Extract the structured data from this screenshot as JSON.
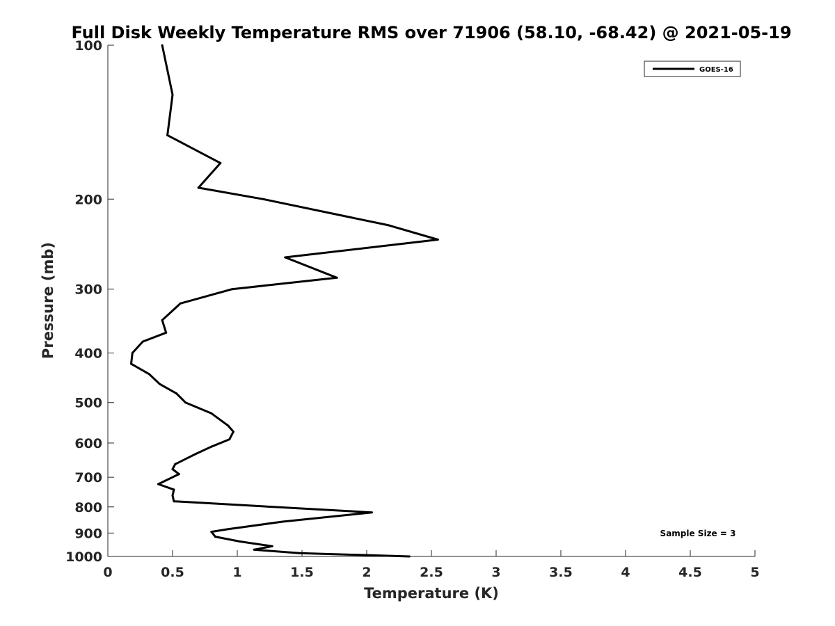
{
  "chart_data": {
    "type": "line",
    "title": "Full Disk Weekly Temperature RMS over 71906 (58.10, -68.42) @ 2021-05-19",
    "xlabel": "Temperature (K)",
    "ylabel": "Pressure (mb)",
    "xlim": [
      0,
      5
    ],
    "ylim": [
      100,
      1000
    ],
    "y_scale": "log",
    "y_reversed": true,
    "x_ticks": [
      "0",
      "0.5",
      "1",
      "1.5",
      "2",
      "2.5",
      "3",
      "3.5",
      "4",
      "4.5",
      "5"
    ],
    "y_ticks": [
      "100",
      "200",
      "300",
      "400",
      "500",
      "600",
      "700",
      "800",
      "900",
      "1000"
    ],
    "grid": false,
    "legend_position": "top-right",
    "series": [
      {
        "name": "GOES-16",
        "color": "#000000",
        "x": [
          0.42,
          0.5,
          0.46,
          0.87,
          0.7,
          1.2,
          2.17,
          2.55,
          1.37,
          1.77,
          0.96,
          0.56,
          0.42,
          0.45,
          0.27,
          0.19,
          0.18,
          0.32,
          0.4,
          0.53,
          0.6,
          0.8,
          0.93,
          0.97,
          0.94,
          0.8,
          0.68,
          0.52,
          0.5,
          0.55,
          0.39,
          0.51,
          0.5,
          0.51,
          2.04,
          1.35,
          0.92,
          0.8,
          0.83,
          1.02,
          1.27,
          1.13,
          1.48,
          2.33
        ],
        "y": [
          100,
          125,
          150,
          170,
          190,
          200,
          225,
          240,
          260,
          285,
          300,
          320,
          345,
          365,
          380,
          400,
          420,
          440,
          460,
          480,
          500,
          525,
          555,
          570,
          590,
          610,
          630,
          660,
          675,
          690,
          722,
          740,
          760,
          780,
          820,
          855,
          885,
          895,
          915,
          935,
          955,
          970,
          985,
          1000
        ]
      }
    ],
    "annotations": [
      "Sample Size = 3"
    ]
  }
}
